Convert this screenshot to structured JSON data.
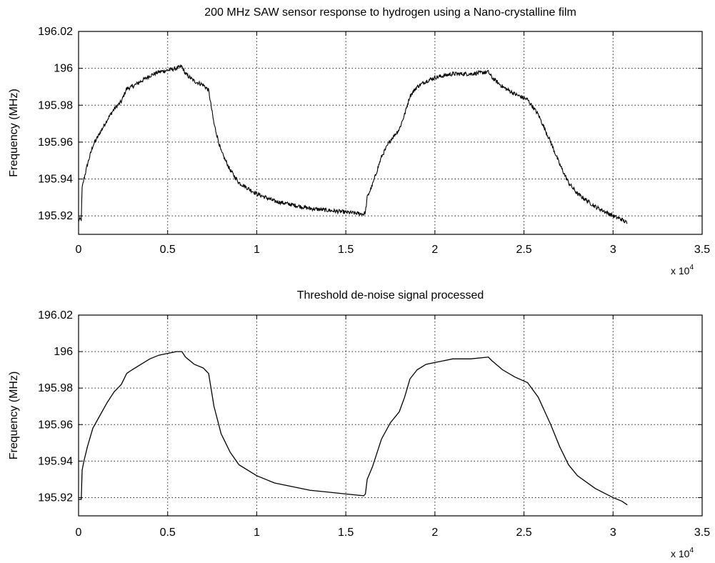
{
  "chart_data": [
    {
      "type": "line",
      "title": "200 MHz SAW sensor  response to hydrogen using a Nano-crystalline film",
      "xlabel": "",
      "ylabel": "Frequency (MHz)",
      "xlim": [
        0,
        35000
      ],
      "ylim": [
        195.91,
        196.02
      ],
      "x_multiplier_label": "x 10",
      "x_multiplier_exponent": "4",
      "x_ticks": [
        "0",
        "0.5",
        "1",
        "1.5",
        "2",
        "2.5",
        "3",
        "3.5"
      ],
      "y_ticks": [
        "195.92",
        "195.94",
        "195.96",
        "195.98",
        "196",
        "196.02"
      ],
      "grid": true,
      "noisy": true,
      "series": [
        {
          "color": "#000000",
          "points": [
            [
              0,
              195.918
            ],
            [
              150,
              195.918
            ],
            [
              200,
              195.935
            ],
            [
              300,
              195.94
            ],
            [
              500,
              195.948
            ],
            [
              800,
              195.958
            ],
            [
              1200,
              195.965
            ],
            [
              1600,
              195.972
            ],
            [
              2000,
              195.978
            ],
            [
              2400,
              195.982
            ],
            [
              2700,
              195.989
            ],
            [
              3000,
              195.99
            ],
            [
              3500,
              195.993
            ],
            [
              4000,
              195.996
            ],
            [
              4500,
              195.998
            ],
            [
              5000,
              195.999
            ],
            [
              5500,
              196.0
            ],
            [
              5800,
              196.001
            ],
            [
              6000,
              195.997
            ],
            [
              6500,
              195.993
            ],
            [
              7000,
              195.991
            ],
            [
              7300,
              195.988
            ],
            [
              7600,
              195.97
            ],
            [
              8000,
              195.955
            ],
            [
              8500,
              195.945
            ],
            [
              9000,
              195.938
            ],
            [
              10000,
              195.932
            ],
            [
              11000,
              195.928
            ],
            [
              12000,
              195.926
            ],
            [
              13000,
              195.924
            ],
            [
              14000,
              195.923
            ],
            [
              15000,
              195.922
            ],
            [
              16000,
              195.921
            ],
            [
              16100,
              195.922
            ],
            [
              16200,
              195.93
            ],
            [
              16500,
              195.937
            ],
            [
              17000,
              195.952
            ],
            [
              17500,
              195.961
            ],
            [
              18000,
              195.967
            ],
            [
              18300,
              195.975
            ],
            [
              18600,
              195.985
            ],
            [
              19000,
              195.99
            ],
            [
              19500,
              195.993
            ],
            [
              20000,
              195.995
            ],
            [
              20500,
              195.996
            ],
            [
              21000,
              195.997
            ],
            [
              22000,
              195.997
            ],
            [
              23000,
              195.998
            ],
            [
              23200,
              195.995
            ],
            [
              23800,
              195.99
            ],
            [
              24500,
              195.986
            ],
            [
              25200,
              195.983
            ],
            [
              25800,
              195.975
            ],
            [
              26500,
              195.96
            ],
            [
              27000,
              195.948
            ],
            [
              27500,
              195.938
            ],
            [
              28000,
              195.932
            ],
            [
              29000,
              195.925
            ],
            [
              30000,
              195.92
            ],
            [
              30500,
              195.918
            ],
            [
              30800,
              195.916
            ]
          ]
        }
      ]
    },
    {
      "type": "line",
      "title": "Threshold de-noise signal processed",
      "xlabel": "",
      "ylabel": "Frequency (MHz)",
      "xlim": [
        0,
        35000
      ],
      "ylim": [
        195.91,
        196.02
      ],
      "x_multiplier_label": "x 10",
      "x_multiplier_exponent": "4",
      "x_ticks": [
        "0",
        "0.5",
        "1",
        "1.5",
        "2",
        "2.5",
        "3",
        "3.5"
      ],
      "y_ticks": [
        "195.92",
        "195.94",
        "195.96",
        "195.98",
        "196",
        "196.02"
      ],
      "grid": true,
      "noisy": false,
      "series": [
        {
          "color": "#000000",
          "points": [
            [
              0,
              195.919
            ],
            [
              150,
              195.919
            ],
            [
              200,
              195.935
            ],
            [
              300,
              195.94
            ],
            [
              500,
              195.948
            ],
            [
              800,
              195.958
            ],
            [
              1200,
              195.965
            ],
            [
              1600,
              195.972
            ],
            [
              2000,
              195.978
            ],
            [
              2400,
              195.982
            ],
            [
              2700,
              195.988
            ],
            [
              3000,
              195.99
            ],
            [
              3500,
              195.993
            ],
            [
              4000,
              195.996
            ],
            [
              4500,
              195.998
            ],
            [
              5000,
              195.999
            ],
            [
              5500,
              196.0
            ],
            [
              5800,
              196.0
            ],
            [
              6000,
              195.997
            ],
            [
              6500,
              195.993
            ],
            [
              7000,
              195.991
            ],
            [
              7300,
              195.988
            ],
            [
              7600,
              195.97
            ],
            [
              8000,
              195.955
            ],
            [
              8500,
              195.945
            ],
            [
              9000,
              195.938
            ],
            [
              10000,
              195.932
            ],
            [
              11000,
              195.928
            ],
            [
              12000,
              195.926
            ],
            [
              13000,
              195.924
            ],
            [
              14000,
              195.923
            ],
            [
              15000,
              195.922
            ],
            [
              16000,
              195.921
            ],
            [
              16100,
              195.922
            ],
            [
              16200,
              195.93
            ],
            [
              16500,
              195.937
            ],
            [
              17000,
              195.952
            ],
            [
              17500,
              195.961
            ],
            [
              18000,
              195.967
            ],
            [
              18300,
              195.975
            ],
            [
              18600,
              195.985
            ],
            [
              19000,
              195.99
            ],
            [
              19500,
              195.993
            ],
            [
              20000,
              195.994
            ],
            [
              20500,
              195.995
            ],
            [
              21000,
              195.996
            ],
            [
              22000,
              195.996
            ],
            [
              23000,
              195.997
            ],
            [
              23200,
              195.995
            ],
            [
              23800,
              195.99
            ],
            [
              24500,
              195.986
            ],
            [
              25200,
              195.983
            ],
            [
              25800,
              195.975
            ],
            [
              26500,
              195.96
            ],
            [
              27000,
              195.948
            ],
            [
              27500,
              195.938
            ],
            [
              28000,
              195.932
            ],
            [
              29000,
              195.925
            ],
            [
              30000,
              195.92
            ],
            [
              30500,
              195.918
            ],
            [
              30800,
              195.916
            ]
          ]
        }
      ]
    }
  ]
}
